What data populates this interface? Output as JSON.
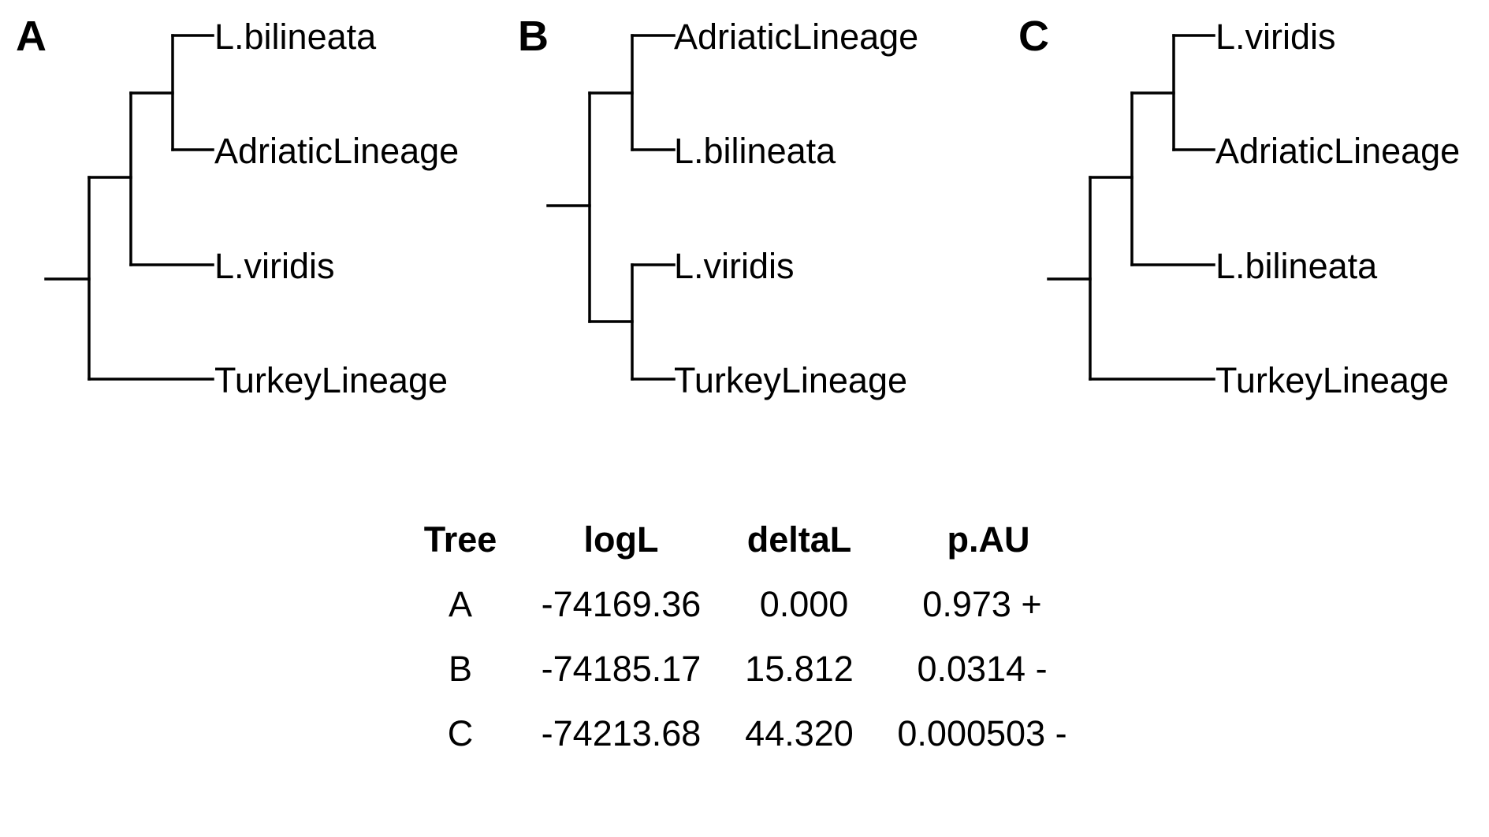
{
  "trees": [
    {
      "letter": "A",
      "tips": [
        "L.bilineata",
        "AdriaticLineage",
        "L.viridis",
        "TurkeyLineage"
      ],
      "topology": "(((L.bilineata,AdriaticLineage),L.viridis),TurkeyLineage)"
    },
    {
      "letter": "B",
      "tips": [
        "AdriaticLineage",
        "L.bilineata",
        "L.viridis",
        "TurkeyLineage"
      ],
      "topology": "((AdriaticLineage,L.bilineata),(L.viridis,TurkeyLineage))"
    },
    {
      "letter": "C",
      "tips": [
        "L.viridis",
        "AdriaticLineage",
        "L.bilineata",
        "TurkeyLineage"
      ],
      "topology": "(((L.viridis,AdriaticLineage),L.bilineata),TurkeyLineage)"
    }
  ],
  "table": {
    "headers": [
      "Tree",
      "logL",
      "deltaL",
      "p.AU"
    ],
    "rows": [
      [
        "A",
        "-74169.36",
        "0.000",
        "0.973 +"
      ],
      [
        "B",
        "-74185.17",
        "15.812",
        "0.0314 -"
      ],
      [
        "C",
        "-74213.68",
        "44.320",
        "0.000503 -"
      ]
    ]
  }
}
